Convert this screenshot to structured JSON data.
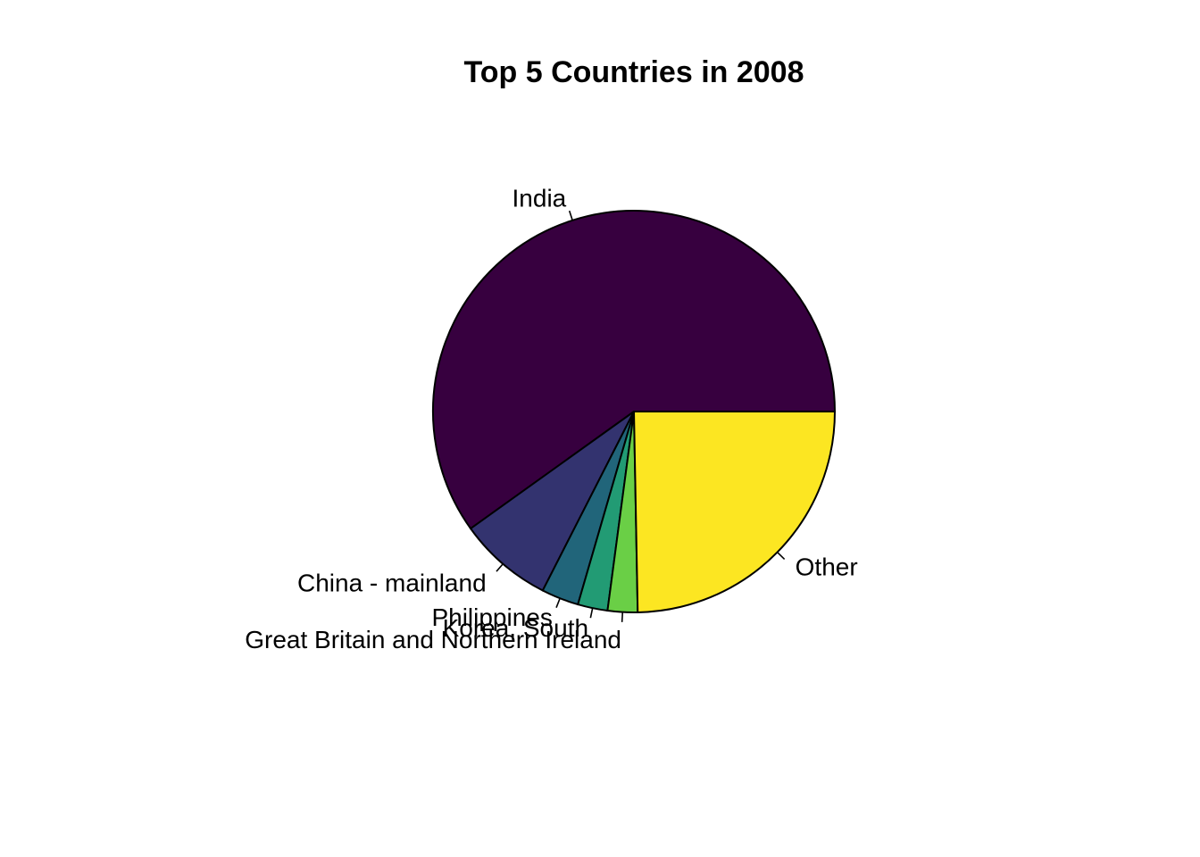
{
  "chart_data": {
    "type": "pie",
    "title": "Top 5 Countries in 2008",
    "start": "3 o'clock",
    "direction": "counterclockwise",
    "slices": [
      {
        "label": "India",
        "value": 59.9,
        "color": "#37003f"
      },
      {
        "label": "China - mainland",
        "value": 7.6,
        "color": "#33336f"
      },
      {
        "label": "Philippines",
        "value": 3.0,
        "color": "#21657a"
      },
      {
        "label": "Korea, South",
        "value": 2.4,
        "color": "#229b74"
      },
      {
        "label": "Great Britain and Northern Ireland",
        "value": 2.4,
        "color": "#6acf46"
      },
      {
        "label": "Other",
        "value": 24.7,
        "color": "#fce622"
      }
    ]
  }
}
